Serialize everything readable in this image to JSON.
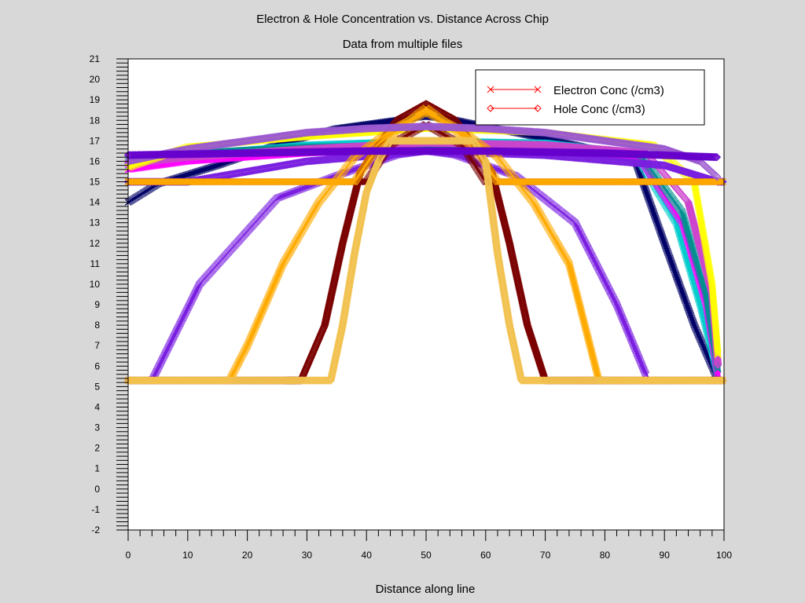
{
  "chart_data": {
    "type": "line",
    "title": "Electron & Hole Concentration vs. Distance Across Chip",
    "subtitle": "Data from multiple files",
    "xlabel": "Distance along line",
    "ylabel": "",
    "xlim": [
      0,
      100
    ],
    "ylim": [
      -2,
      21
    ],
    "x_ticks": [
      0,
      10,
      20,
      30,
      40,
      50,
      60,
      70,
      80,
      90,
      100
    ],
    "y_ticks": [
      -2,
      -1,
      0,
      1,
      2,
      3,
      4,
      5,
      6,
      7,
      8,
      9,
      10,
      11,
      12,
      13,
      14,
      15,
      16,
      17,
      18,
      19,
      20,
      21
    ],
    "grid": false,
    "legend_position": "top-right",
    "legend": [
      {
        "label": "Electron Conc (/cm3)",
        "marker": "x",
        "color": "#ff0000"
      },
      {
        "label": "Hole Conc (/cm3)",
        "marker": "diamond",
        "color": "#ff0000"
      }
    ],
    "series": [
      {
        "color": "#000066",
        "marker": "x",
        "x": [
          0,
          5,
          15,
          25,
          35,
          45,
          50,
          55,
          65,
          75,
          85,
          90,
          95,
          99
        ],
        "y": [
          14.0,
          14.9,
          15.8,
          16.8,
          17.6,
          18.0,
          18.2,
          18.0,
          17.4,
          16.8,
          16.1,
          12.0,
          8.0,
          5.3
        ]
      },
      {
        "color": "#00cccc",
        "marker": "x",
        "x": [
          0,
          10,
          30,
          50,
          70,
          85,
          92,
          96,
          99
        ],
        "y": [
          15.8,
          16.3,
          16.8,
          17.0,
          16.9,
          16.4,
          13.0,
          9.0,
          5.5
        ]
      },
      {
        "color": "#ff00ff",
        "marker": "x",
        "x": [
          0,
          10,
          30,
          50,
          70,
          86,
          93,
          97,
          99
        ],
        "y": [
          15.6,
          16.0,
          16.4,
          16.6,
          16.5,
          16.1,
          13.0,
          9.0,
          5.5
        ]
      },
      {
        "color": "#009090",
        "marker": "x",
        "x": [
          0,
          10,
          30,
          50,
          70,
          86,
          93,
          97,
          99
        ],
        "y": [
          16.0,
          16.4,
          16.7,
          16.8,
          16.7,
          16.3,
          13.5,
          9.5,
          5.8
        ]
      },
      {
        "color": "#cc44cc",
        "marker": "diamond",
        "x": [
          0,
          10,
          30,
          50,
          70,
          87,
          94,
          98,
          99
        ],
        "y": [
          15.9,
          16.2,
          16.6,
          16.9,
          16.8,
          16.4,
          14.0,
          9.5,
          6.0
        ]
      },
      {
        "color": "#ffff00",
        "marker": "x",
        "x": [
          0,
          10,
          30,
          50,
          70,
          88,
          95,
          98,
          99
        ],
        "y": [
          15.7,
          16.7,
          17.2,
          17.6,
          17.4,
          16.8,
          15.0,
          10.0,
          6.5
        ]
      },
      {
        "color": "#7a1fe0",
        "marker": "x",
        "x": [
          0,
          4,
          12,
          25,
          35,
          45,
          50,
          55,
          65,
          75,
          82,
          87
        ],
        "y": [
          5.3,
          5.3,
          10.0,
          14.2,
          15.3,
          16.3,
          16.5,
          16.3,
          15.3,
          13.0,
          9.0,
          5.5
        ]
      },
      {
        "color": "#7a1fe0",
        "marker": "diamond",
        "x": [
          0,
          10,
          30,
          50,
          70,
          90,
          99,
          100
        ],
        "y": [
          15.0,
          15.0,
          16.0,
          16.5,
          16.3,
          15.8,
          15.0,
          15.0
        ]
      },
      {
        "color": "#7b0000",
        "marker": "diamond",
        "x": [
          0,
          26,
          29,
          33,
          36,
          39,
          42,
          45,
          50,
          55,
          58,
          61,
          64,
          67,
          70,
          78,
          100
        ],
        "y": [
          5.3,
          5.3,
          5.3,
          8.0,
          12.0,
          15.5,
          16.8,
          18.0,
          18.8,
          18.0,
          16.8,
          15.5,
          12.0,
          8.0,
          5.3,
          5.3,
          5.3
        ]
      },
      {
        "color": "#7b0000",
        "marker": "x",
        "x": [
          0,
          30,
          40,
          44,
          50,
          56,
          60,
          70,
          100
        ],
        "y": [
          15.0,
          15.0,
          15.0,
          16.8,
          17.8,
          16.8,
          15.0,
          15.0,
          15.0
        ]
      },
      {
        "color": "#ffaa00",
        "marker": "x",
        "x": [
          0,
          17,
          20,
          26,
          32,
          38,
          44,
          50,
          56,
          62,
          68,
          74,
          79,
          100
        ],
        "y": [
          5.3,
          5.3,
          7.0,
          11.0,
          14.0,
          16.2,
          17.5,
          18.4,
          17.5,
          16.2,
          14.0,
          11.0,
          5.3,
          5.3
        ]
      },
      {
        "color": "#ffaa00",
        "marker": "x",
        "x": [
          0,
          10,
          20,
          30,
          38,
          41,
          45,
          50,
          55,
          59,
          62,
          70,
          80,
          90,
          100
        ],
        "y": [
          15.0,
          15.0,
          15.0,
          15.0,
          15.0,
          16.3,
          17.5,
          18.6,
          17.5,
          16.3,
          15.0,
          15.0,
          15.0,
          15.0,
          15.0
        ]
      },
      {
        "color": "#f2c250",
        "marker": "diamond",
        "x": [
          0,
          34,
          36,
          38,
          40,
          42,
          44,
          46,
          58,
          60,
          62,
          64,
          66,
          100
        ],
        "y": [
          5.3,
          5.3,
          8.0,
          11.5,
          14.5,
          16.0,
          17.0,
          17.0,
          17.0,
          16.0,
          11.5,
          8.0,
          5.3,
          5.3
        ]
      },
      {
        "color": "#9b59d0",
        "marker": "diamond",
        "x": [
          0,
          10,
          20,
          30,
          40,
          50,
          60,
          70,
          80,
          90,
          96,
          99
        ],
        "y": [
          16.0,
          16.6,
          17.0,
          17.4,
          17.6,
          17.7,
          17.6,
          17.4,
          17.0,
          16.6,
          16.0,
          15.2
        ]
      },
      {
        "color": "#6600cc",
        "marker": "diamond",
        "x": [
          0,
          20,
          40,
          50,
          60,
          80,
          99
        ],
        "y": [
          16.3,
          16.4,
          16.5,
          16.5,
          16.5,
          16.4,
          16.2
        ]
      }
    ]
  }
}
